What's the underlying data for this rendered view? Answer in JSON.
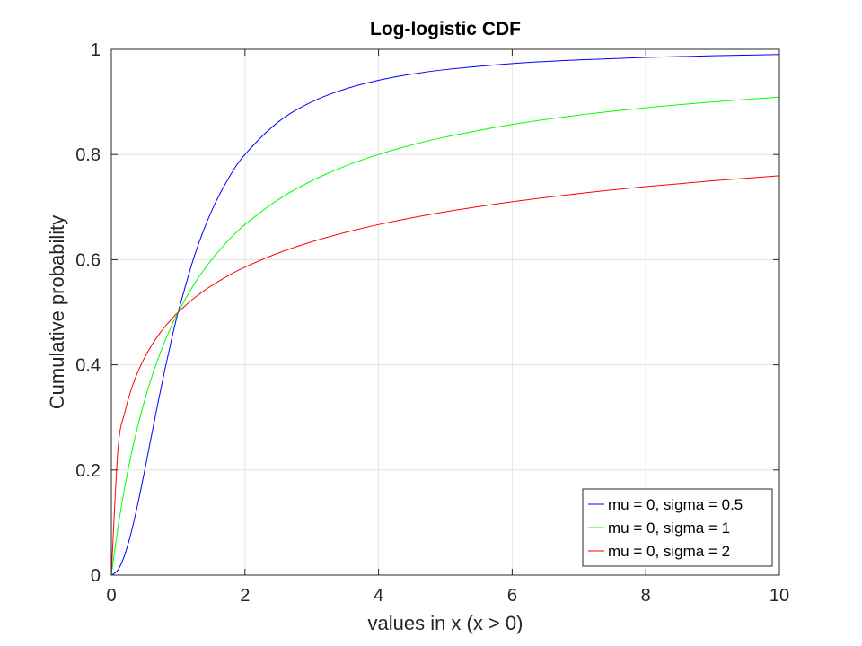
{
  "chart_data": {
    "type": "line",
    "title": "Log-logistic CDF",
    "xlabel": "values in x (x > 0)",
    "ylabel": "Cumulative probability",
    "xlim": [
      0,
      10
    ],
    "ylim": [
      0,
      1
    ],
    "xticks": [
      0,
      2,
      4,
      6,
      8,
      10
    ],
    "xtick_labels": [
      "0",
      "2",
      "4",
      "6",
      "8",
      "10"
    ],
    "yticks": [
      0,
      0.2,
      0.4,
      0.6,
      0.8,
      1
    ],
    "ytick_labels": [
      "0",
      "0.2",
      "0.4",
      "0.6",
      "0.8",
      "1"
    ],
    "grid": true,
    "legend_position": "bottom-right",
    "x": [
      0,
      0.1,
      0.2,
      0.3,
      0.4,
      0.5,
      0.6,
      0.7,
      0.8,
      0.9,
      1,
      1.25,
      1.5,
      1.75,
      2,
      2.5,
      3,
      3.5,
      4,
      4.5,
      5,
      6,
      7,
      8,
      9,
      10
    ],
    "series": [
      {
        "name": "mu = 0, sigma = 0.5",
        "color": "#0000ff",
        "values": [
          0,
          0.0099,
          0.0385,
          0.0826,
          0.1379,
          0.2,
          0.2647,
          0.3289,
          0.3902,
          0.4475,
          0.5,
          0.6098,
          0.6923,
          0.7538,
          0.8,
          0.8621,
          0.9,
          0.9245,
          0.9412,
          0.9529,
          0.9615,
          0.973,
          0.98,
          0.9846,
          0.9878,
          0.9901
        ]
      },
      {
        "name": "mu = 0, sigma = 1",
        "color": "#00ff00",
        "values": [
          0,
          0.0909,
          0.1667,
          0.2308,
          0.2857,
          0.3333,
          0.375,
          0.4118,
          0.4444,
          0.4737,
          0.5,
          0.5556,
          0.6,
          0.6364,
          0.6667,
          0.7143,
          0.75,
          0.7778,
          0.8,
          0.8182,
          0.8333,
          0.8571,
          0.875,
          0.8889,
          0.9,
          0.9091
        ]
      },
      {
        "name": "mu = 0, sigma = 2",
        "color": "#ff0000",
        "values": [
          0,
          0.2403,
          0.309,
          0.3539,
          0.3874,
          0.4142,
          0.4365,
          0.4555,
          0.4721,
          0.4868,
          0.5,
          0.5279,
          0.5505,
          0.5695,
          0.5858,
          0.6126,
          0.634,
          0.6517,
          0.6667,
          0.6796,
          0.691,
          0.7101,
          0.7257,
          0.7388,
          0.75,
          0.7597
        ]
      }
    ]
  }
}
